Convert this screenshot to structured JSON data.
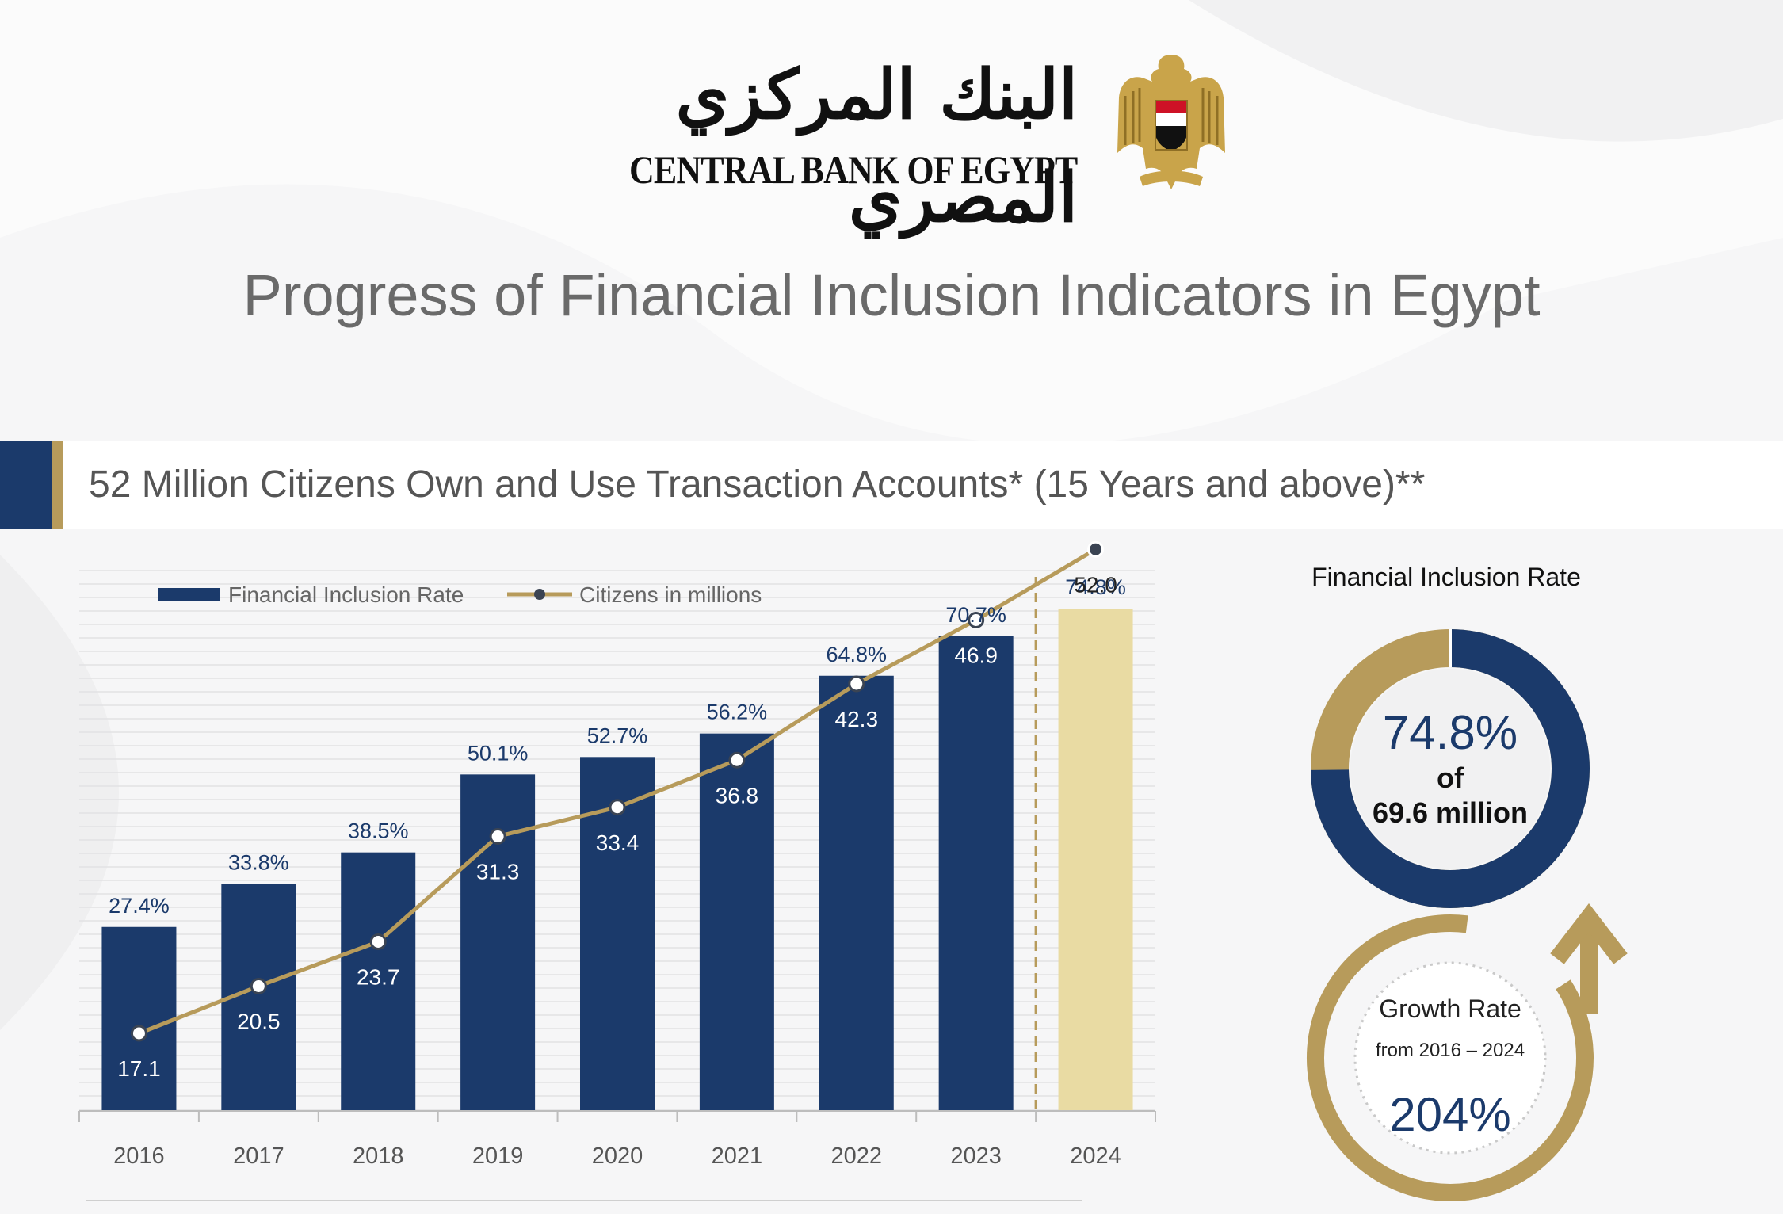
{
  "header": {
    "logo_arabic": "البنك المركزي المصري",
    "logo_english": "CENTRAL BANK OF EGYPT",
    "page_title": "Progress of Financial Inclusion Indicators in Egypt"
  },
  "banner": {
    "text": "52 Million Citizens Own and Use Transaction Accounts* (15 Years and above)**"
  },
  "colors": {
    "navy": "#1b3a6b",
    "gold": "#b79b5b",
    "highlight_bar": "#e9dba3"
  },
  "chart_data": {
    "type": "bar",
    "title": "",
    "xlabel": "",
    "ylabel": "",
    "categories": [
      "2016",
      "2017",
      "2018",
      "2019",
      "2020",
      "2021",
      "2022",
      "2023",
      "2024"
    ],
    "series": [
      {
        "name": "Financial Inclusion Rate",
        "type": "bar",
        "values": [
          27.4,
          33.8,
          38.5,
          50.1,
          52.7,
          56.2,
          64.8,
          70.7,
          74.8
        ],
        "labels": [
          "27.4%",
          "33.8%",
          "38.5%",
          "50.1%",
          "52.7%",
          "56.2%",
          "64.8%",
          "70.7%",
          "74.8%"
        ]
      },
      {
        "name": "Citizens in millions",
        "type": "line",
        "values": [
          17.1,
          20.5,
          23.7,
          31.3,
          33.4,
          36.8,
          42.3,
          46.9,
          52.0
        ],
        "labels": [
          "17.1",
          "20.5",
          "23.7",
          "31.3",
          "33.4",
          "36.8",
          "42.3",
          "46.9",
          "52.0"
        ]
      }
    ],
    "highlight_category": "2024",
    "grid": true,
    "legend_position": "top-left"
  },
  "side_panel": {
    "donut_title": "Financial Inclusion Rate",
    "donut_value": 74.8,
    "donut_pct_text": "74.8%",
    "donut_of_text": "of",
    "donut_population_text": "69.6 million",
    "growth_title": "Growth Rate",
    "growth_period": "from 2016 –  2024",
    "growth_value": "204%"
  }
}
